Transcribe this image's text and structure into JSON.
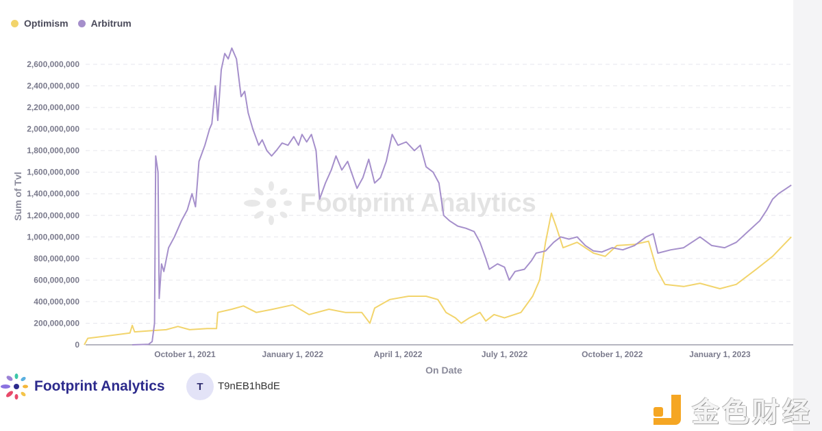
{
  "legend": [
    {
      "name": "Optimism",
      "color": "#f2d46b"
    },
    {
      "name": "Arbitrum",
      "color": "#a58fcb"
    }
  ],
  "watermark": "Footprint Analytics",
  "footer": {
    "brand": "Footprint Analytics",
    "avatar_letter": "T",
    "username": "T9nEB1hBdE",
    "corner_watermark": "金色财经"
  },
  "chart_data": {
    "type": "line",
    "title": "",
    "xlabel": "On Date",
    "ylabel": "Sum of Tvl",
    "ylim": [
      0,
      2700000000
    ],
    "grid": true,
    "legend_position": "top-left",
    "y_ticks": [
      "0",
      "200,000,000",
      "400,000,000",
      "600,000,000",
      "800,000,000",
      "1,000,000,000",
      "1,200,000,000",
      "1,400,000,000",
      "1,600,000,000",
      "1,800,000,000",
      "2,000,000,000",
      "2,200,000,000",
      "2,400,000,000",
      "2,600,000,000"
    ],
    "x_ticks": [
      {
        "label": "October 1, 2021",
        "date": "2021-10-01"
      },
      {
        "label": "January 1, 2022",
        "date": "2022-01-01"
      },
      {
        "label": "April 1, 2022",
        "date": "2022-04-01"
      },
      {
        "label": "July 1, 2022",
        "date": "2022-07-01"
      },
      {
        "label": "October 1, 2022",
        "date": "2022-10-01"
      },
      {
        "label": "January 1, 2023",
        "date": "2023-01-01"
      }
    ],
    "series": [
      {
        "name": "Optimism",
        "color": "#f2d46b",
        "points": [
          [
            "2021-07-07",
            0
          ],
          [
            "2021-07-10",
            60000000
          ],
          [
            "2021-07-25",
            80000000
          ],
          [
            "2021-08-15",
            110000000
          ],
          [
            "2021-08-17",
            180000000
          ],
          [
            "2021-08-19",
            120000000
          ],
          [
            "2021-09-01",
            130000000
          ],
          [
            "2021-09-15",
            140000000
          ],
          [
            "2021-09-25",
            170000000
          ],
          [
            "2021-10-05",
            140000000
          ],
          [
            "2021-10-20",
            150000000
          ],
          [
            "2021-10-28",
            150000000
          ],
          [
            "2021-10-29",
            300000000
          ],
          [
            "2021-11-10",
            330000000
          ],
          [
            "2021-11-20",
            360000000
          ],
          [
            "2021-12-01",
            300000000
          ],
          [
            "2021-12-15",
            330000000
          ],
          [
            "2022-01-01",
            370000000
          ],
          [
            "2022-01-15",
            280000000
          ],
          [
            "2022-02-01",
            330000000
          ],
          [
            "2022-02-15",
            300000000
          ],
          [
            "2022-03-01",
            300000000
          ],
          [
            "2022-03-08",
            200000000
          ],
          [
            "2022-03-12",
            340000000
          ],
          [
            "2022-03-25",
            420000000
          ],
          [
            "2022-04-10",
            450000000
          ],
          [
            "2022-04-25",
            450000000
          ],
          [
            "2022-05-05",
            420000000
          ],
          [
            "2022-05-12",
            300000000
          ],
          [
            "2022-05-20",
            250000000
          ],
          [
            "2022-05-25",
            200000000
          ],
          [
            "2022-06-01",
            250000000
          ],
          [
            "2022-06-10",
            300000000
          ],
          [
            "2022-06-15",
            220000000
          ],
          [
            "2022-06-22",
            280000000
          ],
          [
            "2022-07-01",
            250000000
          ],
          [
            "2022-07-15",
            300000000
          ],
          [
            "2022-07-25",
            450000000
          ],
          [
            "2022-07-31",
            600000000
          ],
          [
            "2022-08-05",
            950000000
          ],
          [
            "2022-08-10",
            1220000000
          ],
          [
            "2022-08-14",
            1100000000
          ],
          [
            "2022-08-20",
            900000000
          ],
          [
            "2022-09-01",
            950000000
          ],
          [
            "2022-09-15",
            850000000
          ],
          [
            "2022-09-25",
            820000000
          ],
          [
            "2022-10-05",
            920000000
          ],
          [
            "2022-10-20",
            930000000
          ],
          [
            "2022-11-01",
            960000000
          ],
          [
            "2022-11-08",
            700000000
          ],
          [
            "2022-11-15",
            560000000
          ],
          [
            "2022-12-01",
            540000000
          ],
          [
            "2022-12-15",
            570000000
          ],
          [
            "2023-01-01",
            520000000
          ],
          [
            "2023-01-15",
            560000000
          ],
          [
            "2023-02-01",
            700000000
          ],
          [
            "2023-02-15",
            820000000
          ],
          [
            "2023-03-03",
            1000000000
          ]
        ]
      },
      {
        "name": "Arbitrum",
        "color": "#a58fcb",
        "points": [
          [
            "2021-08-17",
            0
          ],
          [
            "2021-08-31",
            5000000
          ],
          [
            "2021-09-03",
            30000000
          ],
          [
            "2021-09-05",
            200000000
          ],
          [
            "2021-09-06",
            1750000000
          ],
          [
            "2021-09-08",
            1600000000
          ],
          [
            "2021-09-09",
            430000000
          ],
          [
            "2021-09-11",
            750000000
          ],
          [
            "2021-09-13",
            680000000
          ],
          [
            "2021-09-17",
            900000000
          ],
          [
            "2021-09-22",
            1000000000
          ],
          [
            "2021-09-28",
            1150000000
          ],
          [
            "2021-10-03",
            1250000000
          ],
          [
            "2021-10-07",
            1400000000
          ],
          [
            "2021-10-10",
            1280000000
          ],
          [
            "2021-10-13",
            1700000000
          ],
          [
            "2021-10-18",
            1850000000
          ],
          [
            "2021-10-22",
            2000000000
          ],
          [
            "2021-10-24",
            2050000000
          ],
          [
            "2021-10-27",
            2400000000
          ],
          [
            "2021-10-29",
            2080000000
          ],
          [
            "2021-11-01",
            2550000000
          ],
          [
            "2021-11-04",
            2700000000
          ],
          [
            "2021-11-07",
            2650000000
          ],
          [
            "2021-11-10",
            2750000000
          ],
          [
            "2021-11-14",
            2650000000
          ],
          [
            "2021-11-18",
            2300000000
          ],
          [
            "2021-11-21",
            2350000000
          ],
          [
            "2021-11-24",
            2150000000
          ],
          [
            "2021-11-28",
            2000000000
          ],
          [
            "2021-12-03",
            1850000000
          ],
          [
            "2021-12-06",
            1900000000
          ],
          [
            "2021-12-10",
            1800000000
          ],
          [
            "2021-12-14",
            1750000000
          ],
          [
            "2021-12-18",
            1800000000
          ],
          [
            "2021-12-23",
            1870000000
          ],
          [
            "2021-12-28",
            1850000000
          ],
          [
            "2022-01-02",
            1930000000
          ],
          [
            "2022-01-06",
            1850000000
          ],
          [
            "2022-01-09",
            1950000000
          ],
          [
            "2022-01-13",
            1880000000
          ],
          [
            "2022-01-17",
            1950000000
          ],
          [
            "2022-01-21",
            1800000000
          ],
          [
            "2022-01-24",
            1350000000
          ],
          [
            "2022-01-29",
            1500000000
          ],
          [
            "2022-02-03",
            1620000000
          ],
          [
            "2022-02-07",
            1750000000
          ],
          [
            "2022-02-12",
            1620000000
          ],
          [
            "2022-02-17",
            1700000000
          ],
          [
            "2022-02-25",
            1450000000
          ],
          [
            "2022-03-02",
            1550000000
          ],
          [
            "2022-03-07",
            1720000000
          ],
          [
            "2022-03-12",
            1500000000
          ],
          [
            "2022-03-17",
            1550000000
          ],
          [
            "2022-03-22",
            1700000000
          ],
          [
            "2022-03-27",
            1950000000
          ],
          [
            "2022-04-01",
            1850000000
          ],
          [
            "2022-04-08",
            1880000000
          ],
          [
            "2022-04-15",
            1800000000
          ],
          [
            "2022-04-20",
            1850000000
          ],
          [
            "2022-04-25",
            1650000000
          ],
          [
            "2022-05-01",
            1600000000
          ],
          [
            "2022-05-06",
            1500000000
          ],
          [
            "2022-05-10",
            1200000000
          ],
          [
            "2022-05-15",
            1150000000
          ],
          [
            "2022-05-22",
            1100000000
          ],
          [
            "2022-05-29",
            1080000000
          ],
          [
            "2022-06-05",
            1050000000
          ],
          [
            "2022-06-10",
            950000000
          ],
          [
            "2022-06-15",
            800000000
          ],
          [
            "2022-06-18",
            700000000
          ],
          [
            "2022-06-25",
            750000000
          ],
          [
            "2022-07-01",
            720000000
          ],
          [
            "2022-07-05",
            600000000
          ],
          [
            "2022-07-10",
            680000000
          ],
          [
            "2022-07-18",
            700000000
          ],
          [
            "2022-07-24",
            780000000
          ],
          [
            "2022-07-28",
            850000000
          ],
          [
            "2022-08-05",
            870000000
          ],
          [
            "2022-08-12",
            950000000
          ],
          [
            "2022-08-18",
            1000000000
          ],
          [
            "2022-08-25",
            980000000
          ],
          [
            "2022-09-01",
            1000000000
          ],
          [
            "2022-09-08",
            920000000
          ],
          [
            "2022-09-15",
            870000000
          ],
          [
            "2022-09-22",
            860000000
          ],
          [
            "2022-10-01",
            900000000
          ],
          [
            "2022-10-10",
            880000000
          ],
          [
            "2022-10-20",
            920000000
          ],
          [
            "2022-10-30",
            1000000000
          ],
          [
            "2022-11-05",
            1030000000
          ],
          [
            "2022-11-09",
            850000000
          ],
          [
            "2022-11-20",
            880000000
          ],
          [
            "2022-12-01",
            900000000
          ],
          [
            "2022-12-15",
            1000000000
          ],
          [
            "2022-12-25",
            920000000
          ],
          [
            "2023-01-05",
            900000000
          ],
          [
            "2023-01-15",
            950000000
          ],
          [
            "2023-01-25",
            1050000000
          ],
          [
            "2023-02-04",
            1150000000
          ],
          [
            "2023-02-10",
            1250000000
          ],
          [
            "2023-02-15",
            1350000000
          ],
          [
            "2023-02-20",
            1400000000
          ],
          [
            "2023-03-03",
            1480000000
          ]
        ]
      }
    ]
  }
}
